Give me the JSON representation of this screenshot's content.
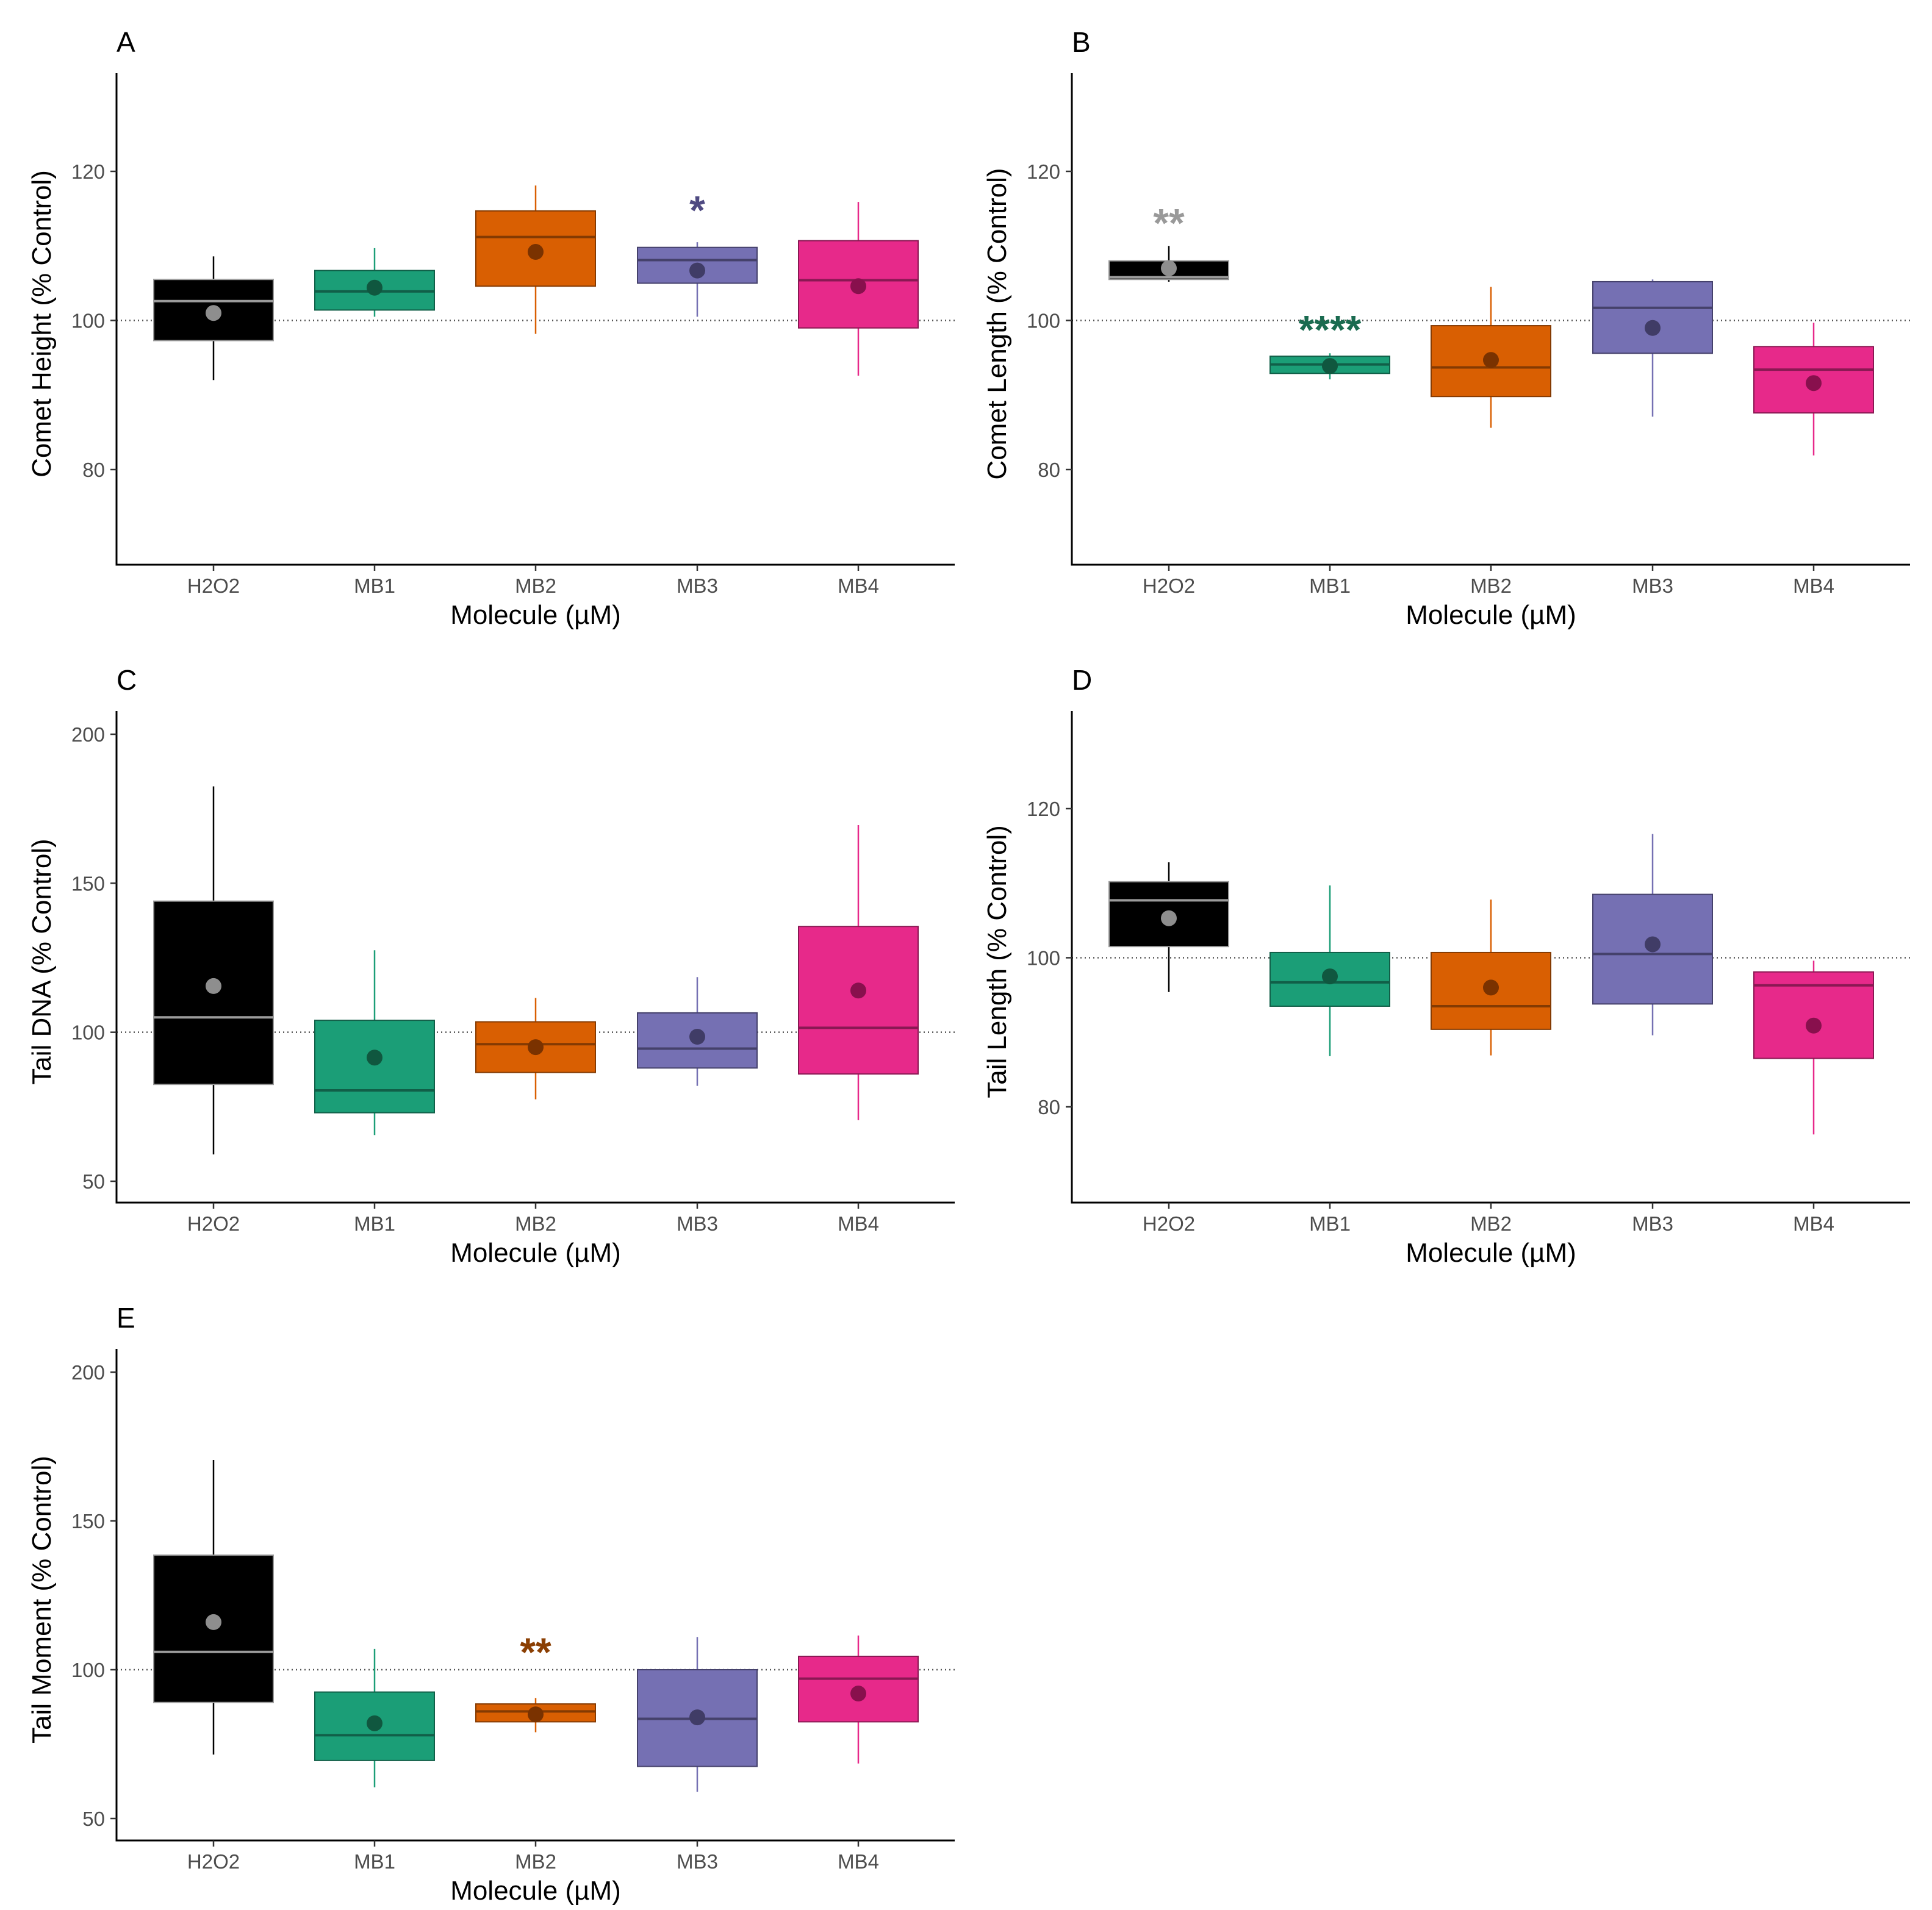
{
  "chart_data": [
    {
      "type": "box",
      "panel": "A",
      "xlabel": "Molecule (µM)",
      "ylabel": "Comet Height (% Control)",
      "ylim": [
        67,
        132
      ],
      "yticks": [
        80,
        100,
        120
      ],
      "reference_line": 100,
      "categories": [
        "H2O2",
        "MB1",
        "MB2",
        "MB3",
        "MB4"
      ],
      "boxes": [
        {
          "min": 92,
          "q1": 97.3,
          "median": 102.6,
          "q3": 105.5,
          "max": 108.6,
          "mean": 101
        },
        {
          "min": 100.5,
          "q1": 101.4,
          "median": 103.9,
          "q3": 106.7,
          "max": 109.7,
          "mean": 104.4
        },
        {
          "min": 98.2,
          "q1": 104.6,
          "median": 111.2,
          "q3": 114.7,
          "max": 118.1,
          "mean": 109.2
        },
        {
          "min": 100.5,
          "q1": 105,
          "median": 108.1,
          "q3": 109.8,
          "max": 110.5,
          "mean": 106.7
        },
        {
          "min": 92.6,
          "q1": 99,
          "median": 105.4,
          "q3": 110.7,
          "max": 115.9,
          "mean": 104.6
        }
      ],
      "annotations": [
        {
          "category": "MB3",
          "text": "*",
          "y": 115.2
        }
      ]
    },
    {
      "type": "box",
      "panel": "B",
      "xlabel": "Molecule (µM)",
      "ylabel": "Comet Length (% Control)",
      "ylim": [
        67,
        132
      ],
      "yticks": [
        80,
        100,
        120
      ],
      "reference_line": 100,
      "categories": [
        "H2O2",
        "MB1",
        "MB2",
        "MB3",
        "MB4"
      ],
      "boxes": [
        {
          "min": 105.2,
          "q1": 105.5,
          "median": 105.8,
          "q3": 108,
          "max": 110,
          "mean": 107
        },
        {
          "min": 92.1,
          "q1": 92.9,
          "median": 94.1,
          "q3": 95.2,
          "max": 95.6,
          "mean": 93.9
        },
        {
          "min": 85.6,
          "q1": 89.8,
          "median": 93.7,
          "q3": 99.3,
          "max": 104.5,
          "mean": 94.7
        },
        {
          "min": 87.1,
          "q1": 95.6,
          "median": 101.7,
          "q3": 105.2,
          "max": 105.5,
          "mean": 99
        },
        {
          "min": 81.9,
          "q1": 87.6,
          "median": 93.4,
          "q3": 96.5,
          "max": 99.7,
          "mean": 91.6
        }
      ],
      "annotations": [
        {
          "category": "H2O2",
          "text": "**",
          "y": 113.5
        },
        {
          "category": "MB1",
          "text": "****",
          "y": 99.2
        }
      ]
    },
    {
      "type": "box",
      "panel": "C",
      "xlabel": "Molecule (µM)",
      "ylabel": "Tail DNA (% Control)",
      "ylim": [
        43,
        215
      ],
      "yticks": [
        50,
        100,
        150,
        200
      ],
      "reference_line": 100,
      "categories": [
        "H2O2",
        "MB1",
        "MB2",
        "MB3",
        "MB4"
      ],
      "boxes": [
        {
          "min": 59,
          "q1": 82.5,
          "median": 105,
          "q3": 144,
          "max": 182.5,
          "mean": 115.5
        },
        {
          "min": 65.5,
          "q1": 73,
          "median": 80.5,
          "q3": 104,
          "max": 127.5,
          "mean": 91.5
        },
        {
          "min": 77.5,
          "q1": 86.5,
          "median": 96,
          "q3": 103.5,
          "max": 111.5,
          "mean": 95
        },
        {
          "min": 82,
          "q1": 88,
          "median": 94.5,
          "q3": 106.5,
          "max": 118.5,
          "mean": 98.5
        },
        {
          "min": 70.5,
          "q1": 86,
          "median": 101.5,
          "q3": 135.5,
          "max": 169.5,
          "mean": 114
        }
      ],
      "annotations": []
    },
    {
      "type": "box",
      "panel": "D",
      "xlabel": "Molecule (µM)",
      "ylabel": "Tail Length (% Control)",
      "ylim": [
        67,
        132
      ],
      "yticks": [
        80,
        100,
        120
      ],
      "reference_line": 100,
      "categories": [
        "H2O2",
        "MB1",
        "MB2",
        "MB3",
        "MB4"
      ],
      "boxes": [
        {
          "min": 95.4,
          "q1": 101.5,
          "median": 107.7,
          "q3": 110.2,
          "max": 112.8,
          "mean": 105.3
        },
        {
          "min": 86.8,
          "q1": 93.5,
          "median": 96.7,
          "q3": 100.7,
          "max": 109.7,
          "mean": 97.5
        },
        {
          "min": 86.9,
          "q1": 90.4,
          "median": 93.5,
          "q3": 100.7,
          "max": 107.8,
          "mean": 96
        },
        {
          "min": 89.6,
          "q1": 93.8,
          "median": 100.5,
          "q3": 108.5,
          "max": 116.6,
          "mean": 101.8
        },
        {
          "min": 76.3,
          "q1": 86.5,
          "median": 96.3,
          "q3": 98.1,
          "max": 99.6,
          "mean": 90.9
        }
      ],
      "annotations": []
    },
    {
      "type": "box",
      "panel": "E",
      "xlabel": "Molecule (µM)",
      "ylabel": "Tail Moment (% Control)",
      "ylim": [
        43,
        215
      ],
      "yticks": [
        50,
        100,
        150,
        200
      ],
      "reference_line": 100,
      "categories": [
        "H2O2",
        "MB1",
        "MB2",
        "MB3",
        "MB4"
      ],
      "boxes": [
        {
          "min": 71.5,
          "q1": 89,
          "median": 106,
          "q3": 138.5,
          "max": 170.5,
          "mean": 116
        },
        {
          "min": 60.5,
          "q1": 69.5,
          "median": 78,
          "q3": 92.5,
          "max": 107,
          "mean": 82
        },
        {
          "min": 79,
          "q1": 82.5,
          "median": 86,
          "q3": 88.5,
          "max": 90.5,
          "mean": 85
        },
        {
          "min": 59,
          "q1": 67.5,
          "median": 83.5,
          "q3": 100,
          "max": 111,
          "mean": 84
        },
        {
          "min": 68.5,
          "q1": 82.5,
          "median": 97,
          "q3": 104.5,
          "max": 111.5,
          "mean": 92
        }
      ],
      "annotations": [
        {
          "category": "MB2",
          "text": "**",
          "y": 107
        }
      ]
    }
  ],
  "colors": {
    "H2O2": {
      "fill": "#000000",
      "line": "#9b9b9b",
      "dot": "#8e8e8e"
    },
    "MB1": {
      "fill": "#1b9e77",
      "line": "#115f48",
      "dot": "#10573f"
    },
    "MB2": {
      "fill": "#d95f02",
      "line": "#843a02",
      "dot": "#7a3200"
    },
    "MB3": {
      "fill": "#7570b3",
      "line": "#45416b",
      "dot": "#403c66"
    },
    "MB4": {
      "fill": "#e7298a",
      "line": "#8a1853",
      "dot": "#88104d"
    }
  },
  "annotation_colors": {
    "H2O2": "#999999",
    "MB1": "#1a6b50",
    "MB2": "#8b3f03",
    "MB3": "#4f4a82"
  }
}
